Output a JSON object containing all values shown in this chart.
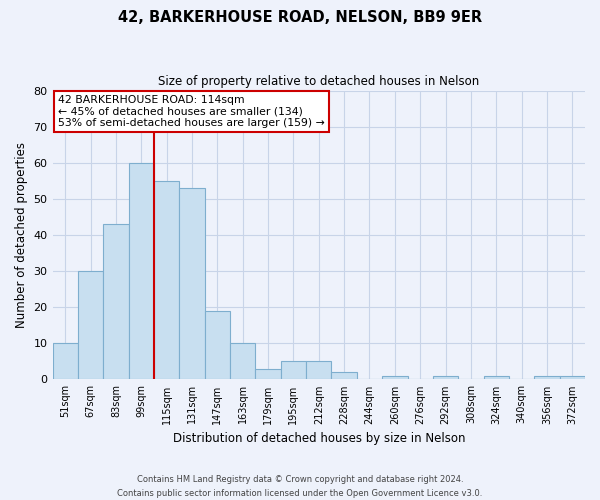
{
  "title": "42, BARKERHOUSE ROAD, NELSON, BB9 9ER",
  "subtitle": "Size of property relative to detached houses in Nelson",
  "xlabel": "Distribution of detached houses by size in Nelson",
  "ylabel": "Number of detached properties",
  "bar_labels": [
    "51sqm",
    "67sqm",
    "83sqm",
    "99sqm",
    "115sqm",
    "131sqm",
    "147sqm",
    "163sqm",
    "179sqm",
    "195sqm",
    "212sqm",
    "228sqm",
    "244sqm",
    "260sqm",
    "276sqm",
    "292sqm",
    "308sqm",
    "324sqm",
    "340sqm",
    "356sqm",
    "372sqm"
  ],
  "bar_values": [
    10,
    30,
    43,
    60,
    55,
    53,
    19,
    10,
    3,
    5,
    5,
    2,
    0,
    1,
    0,
    1,
    0,
    1,
    0,
    1,
    1
  ],
  "bar_color": "#c8dff0",
  "bar_edge_color": "#7eaece",
  "vline_color": "#cc0000",
  "vline_x": 4.0,
  "annotation_text": "42 BARKERHOUSE ROAD: 114sqm\n← 45% of detached houses are smaller (134)\n53% of semi-detached houses are larger (159) →",
  "annotation_box_color": "#ffffff",
  "annotation_border_color": "#cc0000",
  "ylim": [
    0,
    80
  ],
  "yticks": [
    0,
    10,
    20,
    30,
    40,
    50,
    60,
    70,
    80
  ],
  "footer_line1": "Contains HM Land Registry data © Crown copyright and database right 2024.",
  "footer_line2": "Contains public sector information licensed under the Open Government Licence v3.0.",
  "grid_color": "#c8d4e8",
  "background_color": "#eef2fb"
}
